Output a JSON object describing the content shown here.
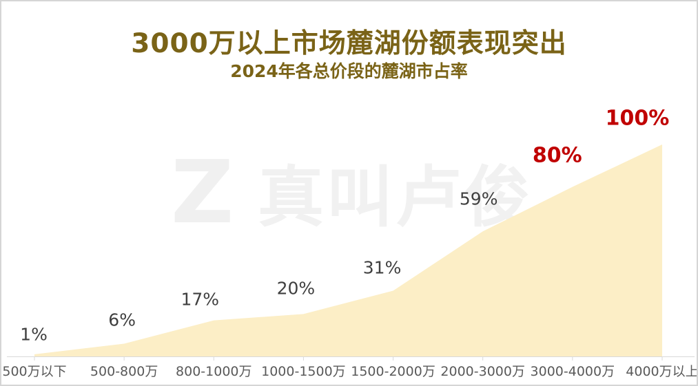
{
  "header": {
    "title": "3000万以上市场麓湖份额表现突出",
    "subtitle": "2024年各总价段的麓湖市占率",
    "title_color": "#7A6317"
  },
  "watermark": {
    "logo": "Z",
    "text": "真叫卢俊"
  },
  "chart_data": {
    "type": "area",
    "title": "3000万以上市场麓湖份额表现突出",
    "subtitle": "2024年各总价段的麓湖市占率",
    "categories": [
      "500万以下",
      "500-800万",
      "800-1000万",
      "1000-1500万",
      "1500-2000万",
      "2000-3000万",
      "3000-4000万",
      "4000万以上"
    ],
    "values": [
      1,
      6,
      17,
      20,
      31,
      59,
      80,
      100
    ],
    "labels": [
      "1%",
      "6%",
      "17%",
      "20%",
      "31%",
      "59%",
      "80%",
      "100%"
    ],
    "highlight_indices": [
      6,
      7
    ],
    "xlabel": "",
    "ylabel": "",
    "ylim": [
      0,
      100
    ],
    "grid": false,
    "legend": false,
    "colors": {
      "area_fill": "#FCEEC6",
      "data_label": "#3F3F3F",
      "highlight_label": "#C00000",
      "axis_line": "#D9D9D9",
      "axis_label": "#595959",
      "watermark": "#F1F1F1",
      "frame_border": "#D5D5D5"
    }
  }
}
